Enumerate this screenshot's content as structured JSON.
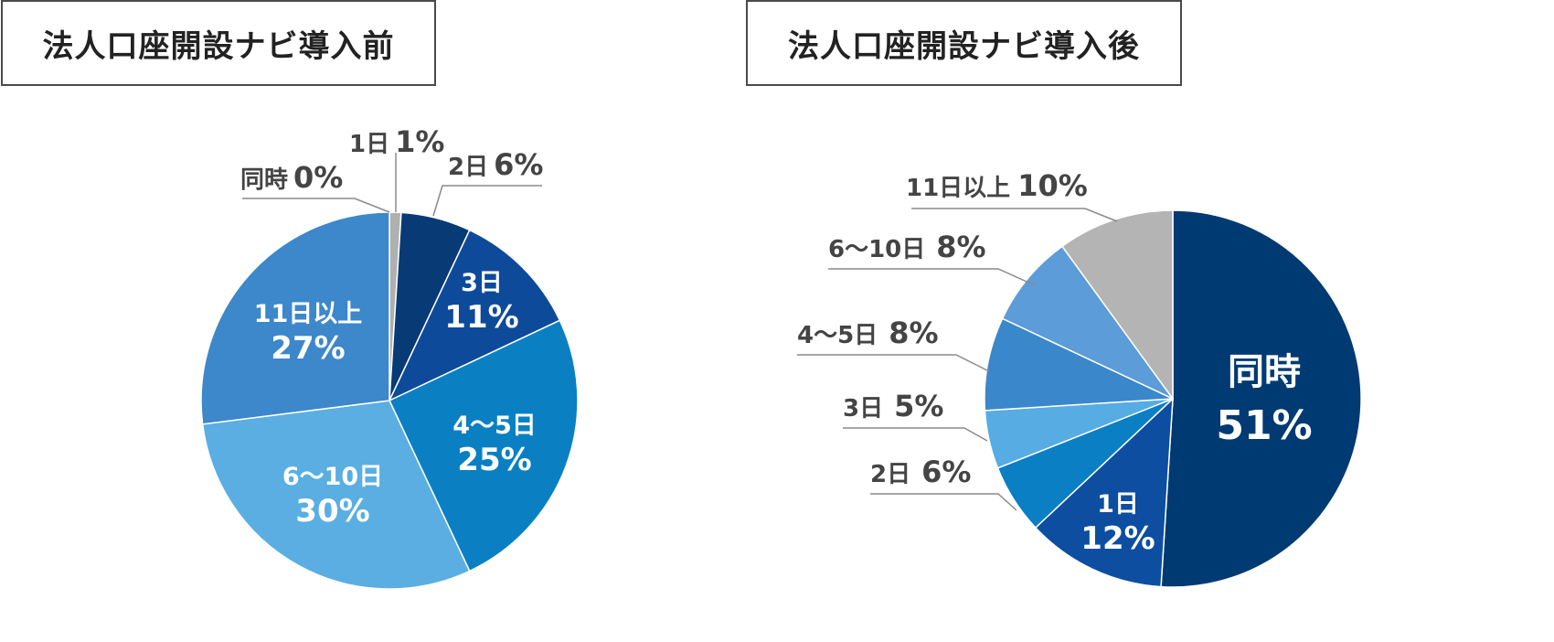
{
  "chart_data": [
    {
      "type": "pie",
      "title": "法人口座開設ナビ導入前",
      "slices": [
        {
          "name": "同時",
          "value": 0,
          "value_label": "0%",
          "color": "#bfbfbf"
        },
        {
          "name": "1日",
          "value": 1,
          "value_label": "1%",
          "color": "#b0b0b0"
        },
        {
          "name": "2日",
          "value": 6,
          "value_label": "6%",
          "color": "#083a75"
        },
        {
          "name": "3日",
          "value": 11,
          "value_label": "11%",
          "color": "#0e4a9a"
        },
        {
          "name": "4〜5日",
          "value": 25,
          "value_label": "25%",
          "color": "#0a80c3"
        },
        {
          "name": "6〜10日",
          "value": 30,
          "value_label": "30%",
          "color": "#5aaee2"
        },
        {
          "name": "11日以上",
          "value": 27,
          "value_label": "27%",
          "color": "#3d87cb"
        }
      ]
    },
    {
      "type": "pie",
      "title": "法人口座開設ナビ導入後",
      "slices": [
        {
          "name": "同時",
          "value": 51,
          "value_label": "51%",
          "color": "#003a72"
        },
        {
          "name": "1日",
          "value": 12,
          "value_label": "12%",
          "color": "#0d4ea0"
        },
        {
          "name": "2日",
          "value": 6,
          "value_label": "6%",
          "color": "#0a7fc4"
        },
        {
          "name": "3日",
          "value": 5,
          "value_label": "5%",
          "color": "#56ace3"
        },
        {
          "name": "4〜5日",
          "value": 8,
          "value_label": "8%",
          "color": "#3b87cb"
        },
        {
          "name": "6〜10日",
          "value": 8,
          "value_label": "8%",
          "color": "#5b9cd9"
        },
        {
          "name": "11日以上",
          "value": 10,
          "value_label": "10%",
          "color": "#b4b4b4"
        }
      ]
    }
  ]
}
